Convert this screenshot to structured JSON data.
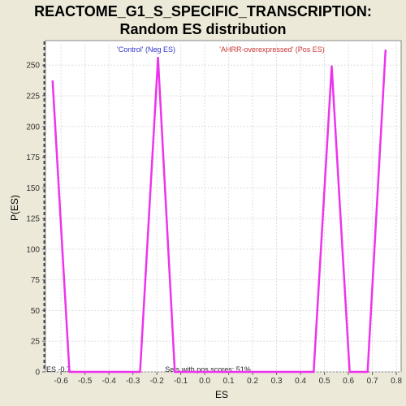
{
  "chart_data": {
    "type": "line",
    "title": "REACTOME_G1_S_SPECIFIC_TRANSCRIPTION:",
    "subtitle": "Random ES distribution",
    "xlabel": "ES",
    "ylabel": "P(ES)",
    "xlim": [
      -0.665,
      0.82
    ],
    "ylim": [
      0,
      270
    ],
    "xticks": [
      -0.6,
      -0.5,
      -0.4,
      -0.3,
      -0.2,
      -0.1,
      0.0,
      0.1,
      0.2,
      0.3,
      0.4,
      0.5,
      0.6,
      0.7,
      0.8
    ],
    "xtick_labels": [
      "-0.6",
      "-0.5",
      "-0.4",
      "-0.3",
      "-0.2",
      "-0.1",
      "0.0",
      "0.1",
      "0.2",
      "0.3",
      "0.4",
      "0.5",
      "0.6",
      "0.7",
      "0.8"
    ],
    "yticks": [
      0,
      25,
      50,
      75,
      100,
      125,
      150,
      175,
      200,
      225,
      250
    ],
    "ytick_labels": [
      "0",
      "25",
      "50",
      "75",
      "100",
      "125",
      "150",
      "175",
      "200",
      "225",
      "250"
    ],
    "grid": true,
    "legend": [
      {
        "label": "'Control' (Neg ES)",
        "color": "#3333cc"
      },
      {
        "label": "'AHRR-overexpressed' (Pos ES)",
        "color": "#cc3333"
      }
    ],
    "series": [
      {
        "color": "#ee33ee",
        "x": [
          -0.635,
          -0.565,
          -0.27,
          -0.195,
          -0.125,
          0.455,
          0.53,
          0.605,
          0.68,
          0.755
        ],
        "y": [
          237,
          0,
          0,
          256,
          0,
          0,
          249,
          0,
          0,
          262
        ]
      }
    ],
    "es_marker": {
      "x": -0.67,
      "label": "ES -0.7"
    },
    "annotation": "Sets with pos scores: 51%"
  }
}
